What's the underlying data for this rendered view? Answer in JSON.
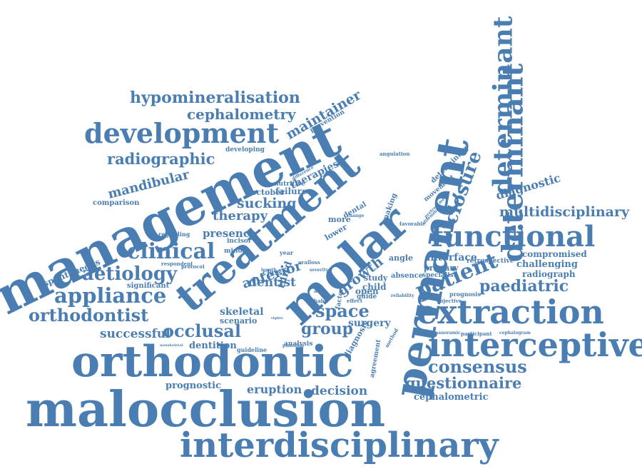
{
  "color": "#4a7eb2",
  "words": [
    {
      "text": "malocclusion"
    },
    {
      "text": "orthodontic"
    },
    {
      "text": "interdisciplinary"
    },
    {
      "text": "management"
    },
    {
      "text": "permanent"
    },
    {
      "text": "molar"
    },
    {
      "text": "treatment"
    },
    {
      "text": "determinant"
    },
    {
      "text": "determinant"
    },
    {
      "text": "interceptive"
    },
    {
      "text": "extraction"
    },
    {
      "text": "functional"
    },
    {
      "text": "development"
    },
    {
      "text": "hypomineralisation"
    },
    {
      "text": "cephalometry"
    },
    {
      "text": "radiographic"
    },
    {
      "text": "maintainer"
    },
    {
      "text": "clinical"
    },
    {
      "text": "aetiology"
    },
    {
      "text": "appliance"
    },
    {
      "text": "orthodontist"
    },
    {
      "text": "occlusal"
    },
    {
      "text": "mandibular"
    },
    {
      "text": "multidisciplinary"
    },
    {
      "text": "paediatric"
    },
    {
      "text": "patient"
    },
    {
      "text": "closure"
    },
    {
      "text": "consensus"
    },
    {
      "text": "questionnaire"
    },
    {
      "text": "space"
    },
    {
      "text": "group"
    },
    {
      "text": "decision"
    },
    {
      "text": "eruption"
    },
    {
      "text": "prognostic"
    },
    {
      "text": "cephalometric"
    },
    {
      "text": "successful"
    },
    {
      "text": "dentition"
    },
    {
      "text": "therapy"
    },
    {
      "text": "sucking"
    },
    {
      "text": "presence"
    },
    {
      "text": "anterior"
    },
    {
      "text": "dentist"
    },
    {
      "text": "growth"
    },
    {
      "text": "surgery"
    },
    {
      "text": "skeletal"
    },
    {
      "text": "scenario"
    },
    {
      "text": "diagnostic"
    },
    {
      "text": "compromised"
    },
    {
      "text": "challenging"
    },
    {
      "text": "radiograph"
    },
    {
      "text": "interface"
    },
    {
      "text": "primary"
    },
    {
      "text": "specialist"
    },
    {
      "text": "angle"
    },
    {
      "text": "absence"
    },
    {
      "text": "study"
    },
    {
      "text": "child"
    },
    {
      "text": "open"
    },
    {
      "text": "spontaneous"
    },
    {
      "text": "significant"
    },
    {
      "text": "comparison"
    },
    {
      "text": "october"
    },
    {
      "text": "failure"
    },
    {
      "text": "therapies"
    },
    {
      "text": "developing"
    },
    {
      "text": "prevention"
    },
    {
      "text": "nutritive"
    },
    {
      "text": "incisor"
    },
    {
      "text": "minor"
    },
    {
      "text": "regarding"
    },
    {
      "text": "respondent"
    },
    {
      "text": "protocol"
    },
    {
      "text": "analysis"
    },
    {
      "text": "guideline"
    },
    {
      "text": "diagnosis"
    },
    {
      "text": "agreement"
    },
    {
      "text": "retrospective"
    },
    {
      "text": "prognosis"
    },
    {
      "text": "objective"
    },
    {
      "text": "panoramic"
    },
    {
      "text": "participant"
    },
    {
      "text": "cephalogram"
    },
    {
      "text": "nonskeletal"
    },
    {
      "text": "third"
    },
    {
      "text": "class"
    },
    {
      "text": "more"
    },
    {
      "text": "lower"
    },
    {
      "text": "dental"
    },
    {
      "text": "oralloss"
    },
    {
      "text": "making"
    },
    {
      "text": "movement"
    },
    {
      "text": "determining"
    },
    {
      "text": "pretreatment"
    },
    {
      "text": "dilemma"
    },
    {
      "text": "response"
    },
    {
      "text": "favorable"
    },
    {
      "text": "angulation"
    },
    {
      "text": "guide"
    },
    {
      "text": "factor"
    },
    {
      "text": "effect"
    },
    {
      "text": "arch"
    },
    {
      "text": "habit"
    },
    {
      "text": "reliability"
    },
    {
      "text": "change"
    },
    {
      "text": "method"
    },
    {
      "text": "planning"
    },
    {
      "text": "difference"
    },
    {
      "text": "year"
    },
    {
      "text": "rights"
    },
    {
      "text": "length"
    },
    {
      "text": "severity"
    }
  ]
}
